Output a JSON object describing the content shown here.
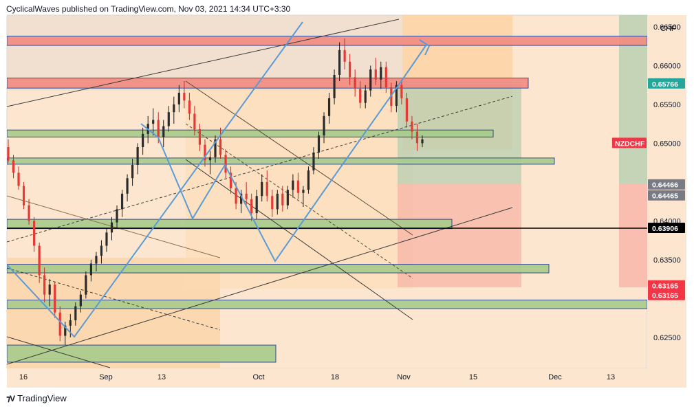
{
  "header": {
    "text": "CyclicalWaves published on TradingView.com, Nov 03, 2021 14:34 UTC+3:30"
  },
  "footer": {
    "brand": "TradingView",
    "logo": "tradingview-logo-icon"
  },
  "chart_data": {
    "type": "candlestick",
    "symbol": "NZDCHF",
    "currency": "CHF",
    "x_ticks": [
      "16",
      "Sep",
      "13",
      "Oct",
      "18",
      "Nov",
      "15",
      "Dec",
      "13"
    ],
    "y_ticks": [
      "0.66500",
      "0.66000",
      "0.65500",
      "0.65000",
      "0.64000",
      "0.63500",
      "0.62500"
    ],
    "ylim": [
      0.621,
      0.6665
    ],
    "price_tags": [
      {
        "label": "0.65766",
        "value": 0.65766,
        "color": "#26a69a"
      },
      {
        "label": "NZDCHF",
        "value": 0.65,
        "color": "#f23645"
      },
      {
        "label": "0.64466",
        "value": 0.64466,
        "color": "#787b86"
      },
      {
        "label": "0.64465",
        "value": 0.64465,
        "color": "#787b86"
      },
      {
        "label": "0.63906",
        "value": 0.63906,
        "color": "#000000"
      },
      {
        "label": "0.63165",
        "value": 0.63165,
        "color": "#f23645"
      },
      {
        "label": "0.63165",
        "value": 0.63165,
        "color": "#f23645"
      }
    ],
    "horizontal_line": 0.63906,
    "zones": [
      {
        "kind": "resistance",
        "top": 0.6638,
        "bottom": 0.6626,
        "color": "#f28b82"
      },
      {
        "kind": "resistance",
        "top": 0.6584,
        "bottom": 0.6571,
        "color": "#f28b82"
      },
      {
        "kind": "support",
        "top": 0.6517,
        "bottom": 0.6508,
        "color": "#a8cc8c"
      },
      {
        "kind": "support",
        "top": 0.6481,
        "bottom": 0.6473,
        "color": "#a8cc8c"
      },
      {
        "kind": "support",
        "top": 0.6402,
        "bottom": 0.639,
        "color": "#a8cc8c"
      },
      {
        "kind": "support",
        "top": 0.6344,
        "bottom": 0.6333,
        "color": "#a8cc8c"
      },
      {
        "kind": "support",
        "top": 0.6298,
        "bottom": 0.6287,
        "color": "#a8cc8c"
      },
      {
        "kind": "support",
        "top": 0.624,
        "bottom": 0.6218,
        "color": "#a8cc8c"
      }
    ],
    "candles": [
      [
        0.6495,
        0.6505,
        0.6475,
        0.6478
      ],
      [
        0.6478,
        0.6485,
        0.6455,
        0.6462
      ],
      [
        0.6462,
        0.647,
        0.644,
        0.6445
      ],
      [
        0.6445,
        0.645,
        0.6415,
        0.642
      ],
      [
        0.642,
        0.6428,
        0.6395,
        0.64
      ],
      [
        0.64,
        0.6405,
        0.636,
        0.6368
      ],
      [
        0.6368,
        0.6372,
        0.632,
        0.633
      ],
      [
        0.633,
        0.634,
        0.6295,
        0.6305
      ],
      [
        0.6305,
        0.6325,
        0.629,
        0.6318
      ],
      [
        0.6318,
        0.6322,
        0.6275,
        0.6282
      ],
      [
        0.6282,
        0.629,
        0.6245,
        0.6252
      ],
      [
        0.6252,
        0.627,
        0.624,
        0.6265
      ],
      [
        0.6265,
        0.628,
        0.625,
        0.6272
      ],
      [
        0.6272,
        0.6295,
        0.6265,
        0.629
      ],
      [
        0.629,
        0.631,
        0.6282,
        0.6305
      ],
      [
        0.6305,
        0.6335,
        0.63,
        0.633
      ],
      [
        0.633,
        0.635,
        0.6322,
        0.6345
      ],
      [
        0.6345,
        0.636,
        0.6335,
        0.6355
      ],
      [
        0.6355,
        0.6375,
        0.6345,
        0.6368
      ],
      [
        0.6368,
        0.639,
        0.636,
        0.6385
      ],
      [
        0.6385,
        0.6405,
        0.6375,
        0.6398
      ],
      [
        0.6398,
        0.642,
        0.639,
        0.6415
      ],
      [
        0.6415,
        0.644,
        0.6405,
        0.6435
      ],
      [
        0.6435,
        0.646,
        0.6425,
        0.6455
      ],
      [
        0.6455,
        0.648,
        0.6445,
        0.6472
      ],
      [
        0.6472,
        0.65,
        0.646,
        0.6495
      ],
      [
        0.6495,
        0.652,
        0.6485,
        0.6512
      ],
      [
        0.6512,
        0.6535,
        0.65,
        0.6525
      ],
      [
        0.6525,
        0.6545,
        0.651,
        0.653
      ],
      [
        0.653,
        0.654,
        0.65,
        0.6508
      ],
      [
        0.6508,
        0.653,
        0.6495,
        0.6522
      ],
      [
        0.6522,
        0.6548,
        0.6515,
        0.654
      ],
      [
        0.654,
        0.656,
        0.6525,
        0.655
      ],
      [
        0.655,
        0.6575,
        0.654,
        0.6565
      ],
      [
        0.6565,
        0.658,
        0.6545,
        0.6555
      ],
      [
        0.6555,
        0.6565,
        0.653,
        0.6538
      ],
      [
        0.6538,
        0.6548,
        0.651,
        0.6518
      ],
      [
        0.6518,
        0.6525,
        0.649,
        0.6498
      ],
      [
        0.6498,
        0.6505,
        0.647,
        0.6478
      ],
      [
        0.6478,
        0.649,
        0.646,
        0.6482
      ],
      [
        0.6482,
        0.651,
        0.6475,
        0.6505
      ],
      [
        0.6505,
        0.652,
        0.648,
        0.6485
      ],
      [
        0.6485,
        0.6492,
        0.6455,
        0.6462
      ],
      [
        0.6462,
        0.647,
        0.6435,
        0.6442
      ],
      [
        0.6442,
        0.645,
        0.6415,
        0.6422
      ],
      [
        0.6422,
        0.644,
        0.641,
        0.6435
      ],
      [
        0.6435,
        0.645,
        0.642,
        0.6428
      ],
      [
        0.6428,
        0.6435,
        0.64,
        0.641
      ],
      [
        0.641,
        0.644,
        0.6402,
        0.6432
      ],
      [
        0.6432,
        0.646,
        0.6425,
        0.645
      ],
      [
        0.645,
        0.6465,
        0.6425,
        0.6432
      ],
      [
        0.6432,
        0.644,
        0.6405,
        0.6415
      ],
      [
        0.6415,
        0.644,
        0.6408,
        0.6435
      ],
      [
        0.6435,
        0.6445,
        0.6412,
        0.642
      ],
      [
        0.642,
        0.6445,
        0.6415,
        0.644
      ],
      [
        0.644,
        0.646,
        0.643,
        0.6452
      ],
      [
        0.6452,
        0.6462,
        0.6428,
        0.6436
      ],
      [
        0.6436,
        0.6445,
        0.6418,
        0.644
      ],
      [
        0.644,
        0.647,
        0.6435,
        0.6465
      ],
      [
        0.6465,
        0.6495,
        0.646,
        0.6488
      ],
      [
        0.6488,
        0.6515,
        0.648,
        0.651
      ],
      [
        0.651,
        0.654,
        0.65,
        0.6535
      ],
      [
        0.6535,
        0.6565,
        0.6525,
        0.6558
      ],
      [
        0.6558,
        0.6595,
        0.655,
        0.6588
      ],
      [
        0.6588,
        0.663,
        0.658,
        0.662
      ],
      [
        0.662,
        0.6635,
        0.6595,
        0.6605
      ],
      [
        0.6605,
        0.6615,
        0.6575,
        0.6585
      ],
      [
        0.6585,
        0.6595,
        0.656,
        0.657
      ],
      [
        0.657,
        0.658,
        0.6545,
        0.6552
      ],
      [
        0.6552,
        0.6575,
        0.6545,
        0.6568
      ],
      [
        0.6568,
        0.66,
        0.656,
        0.6595
      ],
      [
        0.6595,
        0.661,
        0.6575,
        0.6582
      ],
      [
        0.6582,
        0.6605,
        0.657,
        0.6598
      ],
      [
        0.6598,
        0.6605,
        0.6565,
        0.6572
      ],
      [
        0.6572,
        0.6578,
        0.654,
        0.6548
      ],
      [
        0.6548,
        0.658,
        0.654,
        0.6575
      ],
      [
        0.6575,
        0.6582,
        0.655,
        0.6558
      ],
      [
        0.6558,
        0.6565,
        0.652,
        0.6528
      ],
      [
        0.6528,
        0.6535,
        0.6505,
        0.6515
      ],
      [
        0.6515,
        0.6525,
        0.649,
        0.65
      ],
      [
        0.65,
        0.651,
        0.6495,
        0.6505
      ]
    ]
  }
}
